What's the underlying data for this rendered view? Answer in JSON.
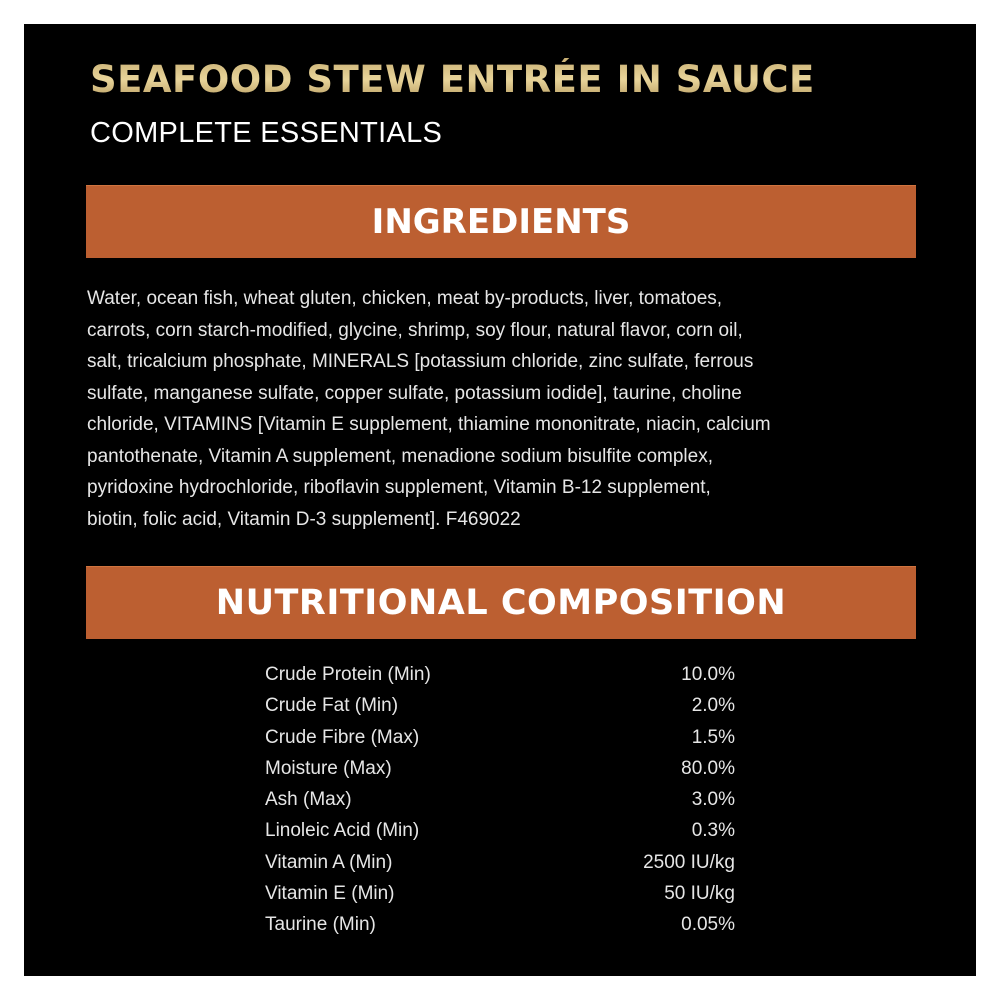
{
  "header": {
    "title": "SEAFOOD STEW ENTRÉE IN SAUCE",
    "subtitle": "COMPLETE ESSENTIALS"
  },
  "colors": {
    "background": "#000000",
    "section_bar": "#bc5f31",
    "title_gold": "#d9c285",
    "text": "#e6e6e6"
  },
  "ingredients": {
    "heading": "INGREDIENTS",
    "lines": [
      "Water, ocean fish, wheat gluten, chicken, meat by-products, liver, tomatoes,",
      "carrots, corn starch-modified, glycine, shrimp, soy flour, natural flavor, corn oil,",
      "salt, tricalcium phosphate, MINERALS [potassium chloride, zinc sulfate, ferrous",
      "sulfate, manganese sulfate, copper sulfate, potassium iodide], taurine, choline",
      "chloride, VITAMINS [Vitamin E supplement, thiamine mononitrate, niacin, calcium",
      "pantothenate, Vitamin A supplement, menadione sodium bisulfite complex,",
      "pyridoxine hydrochloride, riboflavin supplement, Vitamin B-12 supplement,",
      "biotin, folic acid, Vitamin D-3 supplement]. F469022"
    ]
  },
  "nutrition": {
    "heading": "NUTRITIONAL COMPOSITION",
    "rows": [
      {
        "label": "Crude Protein (Min)",
        "value": "10.0%"
      },
      {
        "label": "Crude Fat (Min)",
        "value": "2.0%"
      },
      {
        "label": "Crude Fibre (Max)",
        "value": "1.5%"
      },
      {
        "label": "Moisture (Max)",
        "value": "80.0%"
      },
      {
        "label": "Ash (Max)",
        "value": "3.0%"
      },
      {
        "label": "Linoleic Acid (Min)",
        "value": "0.3%"
      },
      {
        "label": "Vitamin A (Min)",
        "value": "2500 IU/kg"
      },
      {
        "label": "Vitamin E (Min)",
        "value": "50 IU/kg"
      },
      {
        "label": "Taurine (Min)",
        "value": "0.05%"
      }
    ]
  }
}
